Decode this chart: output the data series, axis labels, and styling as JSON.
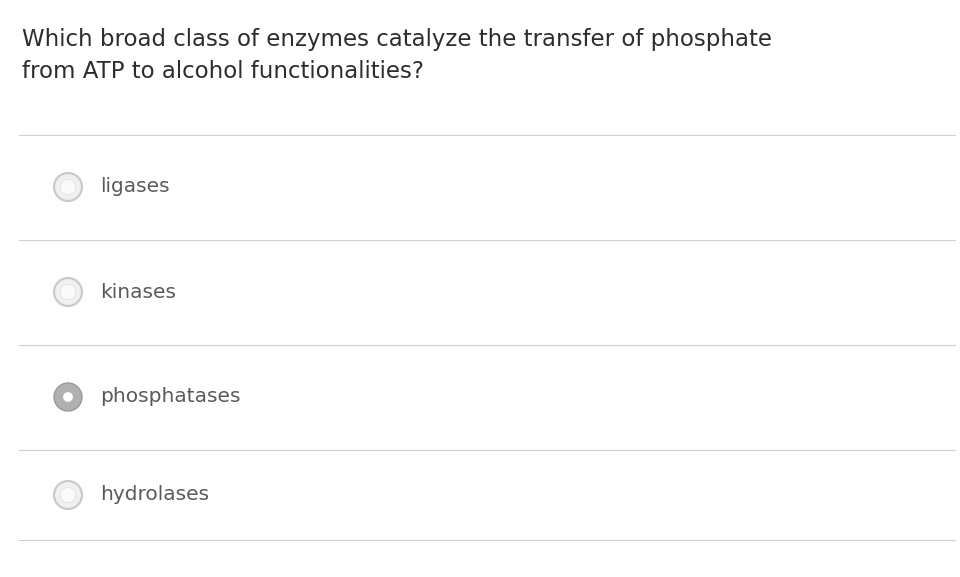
{
  "question_line1": "Which broad class of enzymes catalyze the transfer of phosphate",
  "question_line2": "from ATP to alcohol functionalities?",
  "options": [
    "ligases",
    "kinases",
    "phosphatases",
    "hydrolases"
  ],
  "selected_index": 2,
  "background_color": "#ffffff",
  "text_color": "#2d2d2d",
  "option_text_color": "#5a5a5a",
  "divider_color": "#d0d0d0",
  "question_fontsize": 16.5,
  "option_fontsize": 14.5,
  "fig_width": 9.6,
  "fig_height": 5.77,
  "dpi": 100
}
